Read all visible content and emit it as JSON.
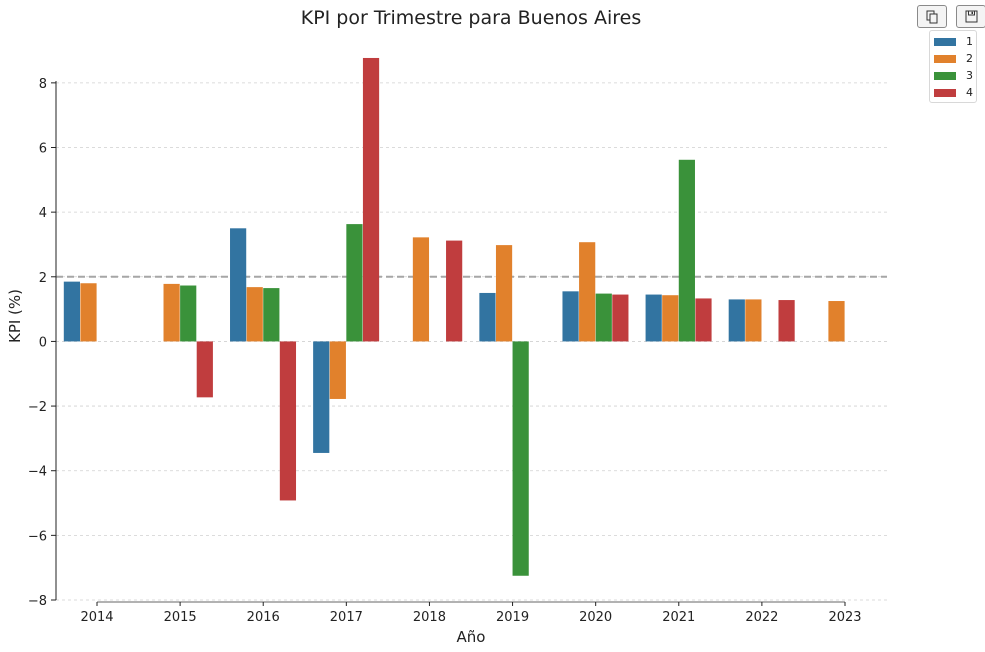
{
  "chart_data": {
    "type": "bar",
    "title": "KPI por Trimestre para Buenos Aires",
    "xlabel": "Año",
    "ylabel": "KPI (%)",
    "categories": [
      "2014",
      "2015",
      "2016",
      "2017",
      "2018",
      "2019",
      "2020",
      "2021",
      "2022",
      "2023"
    ],
    "yticks": [
      8,
      6,
      4,
      2,
      0,
      -2,
      -4,
      -6,
      -8
    ],
    "ylim": [
      -8,
      8.8
    ],
    "grid": true,
    "legend_position": "top-right",
    "reference_line": 2,
    "series": [
      {
        "name": "1",
        "color": "#3274a1",
        "values": [
          1.85,
          null,
          3.5,
          -3.45,
          null,
          1.5,
          1.55,
          1.45,
          1.3,
          null
        ]
      },
      {
        "name": "2",
        "color": "#e1812c",
        "values": [
          1.8,
          1.78,
          1.68,
          -1.78,
          3.22,
          2.98,
          3.07,
          1.43,
          1.3,
          1.25
        ]
      },
      {
        "name": "3",
        "color": "#3a923a",
        "values": [
          null,
          1.73,
          1.65,
          3.63,
          null,
          -7.25,
          1.48,
          5.62,
          null,
          null
        ]
      },
      {
        "name": "4",
        "color": "#c03d3e",
        "values": [
          null,
          -1.73,
          -4.92,
          8.77,
          3.12,
          null,
          1.45,
          1.33,
          1.28,
          null
        ]
      }
    ]
  },
  "toolbar": {
    "copy_icon": "copy-icon",
    "save_icon": "save-icon"
  }
}
